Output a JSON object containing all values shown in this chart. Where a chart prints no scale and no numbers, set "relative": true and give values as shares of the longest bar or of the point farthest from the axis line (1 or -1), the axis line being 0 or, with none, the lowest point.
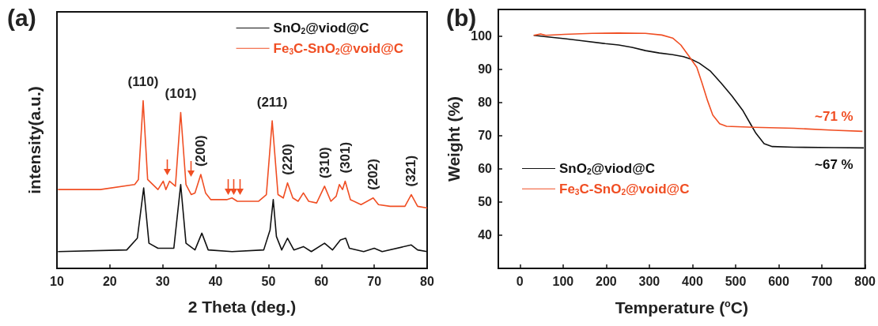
{
  "chart_data": [
    {
      "type": "line",
      "title": "(a)",
      "xlabel": "2 Theta (deg.)",
      "ylabel": "intensity(a.u.)",
      "relative": true,
      "tick_labels": "x",
      "legend": "top right",
      "xlim": [
        10,
        80
      ],
      "xticks": [
        10,
        20,
        30,
        40,
        50,
        60,
        70,
        80
      ],
      "series": [
        {
          "name": "SnO$_{2}$@viod@C",
          "color": "#111111",
          "x": [
            10.2,
            23.2,
            25.2,
            26.4,
            27.4,
            29.1,
            32.1,
            33.4,
            34.4,
            36.1,
            37.4,
            38.6,
            43.1,
            49.1,
            50.3,
            50.9,
            51.5,
            52.5,
            53.6,
            54.8,
            56.6,
            58.1,
            60.6,
            62.1,
            63.6,
            64.6,
            65.3,
            68.0,
            70.0,
            71.5,
            77.0,
            78.2,
            80.0
          ],
          "values": [
            0.1,
            0.11,
            0.18,
            0.48,
            0.15,
            0.12,
            0.12,
            0.5,
            0.15,
            0.11,
            0.21,
            0.11,
            0.1,
            0.11,
            0.23,
            0.41,
            0.19,
            0.11,
            0.18,
            0.11,
            0.13,
            0.1,
            0.15,
            0.11,
            0.17,
            0.18,
            0.12,
            0.1,
            0.12,
            0.1,
            0.14,
            0.11,
            0.1
          ]
        },
        {
          "name": "Fe$_{3}$C-SnO$_{2}$@void@C",
          "color": "#f04e23",
          "x": [
            10.2,
            18.2,
            24.7,
            25.4,
            26.3,
            27.15,
            29.1,
            30.1,
            30.6,
            31.3,
            32.4,
            33.4,
            34.4,
            35.4,
            36.1,
            37.2,
            38.1,
            39.1,
            42.1,
            43.1,
            44.1,
            48.1,
            49.6,
            50.7,
            51.8,
            52.8,
            53.6,
            54.6,
            55.6,
            56.6,
            57.6,
            59.1,
            60.6,
            61.8,
            62.8,
            63.4,
            64.0,
            64.5,
            65.5,
            67.5,
            69.8,
            70.8,
            73.0,
            75.8,
            77.0,
            78.2,
            80.0
          ],
          "values": [
            0.47,
            0.47,
            0.5,
            0.53,
            1.0,
            0.53,
            0.47,
            0.52,
            0.47,
            0.52,
            0.49,
            0.93,
            0.5,
            0.44,
            0.45,
            0.56,
            0.45,
            0.41,
            0.41,
            0.42,
            0.4,
            0.4,
            0.44,
            0.88,
            0.44,
            0.42,
            0.51,
            0.42,
            0.4,
            0.45,
            0.4,
            0.39,
            0.49,
            0.4,
            0.43,
            0.5,
            0.47,
            0.52,
            0.41,
            0.38,
            0.42,
            0.38,
            0.37,
            0.37,
            0.44,
            0.37,
            0.36
          ]
        }
      ],
      "annotations": [
        {
          "text": "(110)",
          "x": 26.3,
          "y": 1.0
        },
        {
          "text": "(101)",
          "x": 33.4,
          "y": 0.93
        },
        {
          "text": "(200)",
          "x": 37.2,
          "y": 0.56
        },
        {
          "text": "(211)",
          "x": 50.7,
          "y": 0.88
        },
        {
          "text": "(220)",
          "x": 53.6,
          "y": 0.51
        },
        {
          "text": "(310)",
          "x": 60.6,
          "y": 0.49
        },
        {
          "text": "(301)",
          "x": 64.5,
          "y": 0.52
        },
        {
          "text": "(202)",
          "x": 69.8,
          "y": 0.42
        },
        {
          "text": "(321)",
          "x": 77.0,
          "y": 0.44
        }
      ]
    },
    {
      "type": "line",
      "title": "(b)",
      "xlabel": "Temperature ($^{o}$C)",
      "ylabel": "Weight (%)",
      "legend": "left",
      "xlim": [
        -50,
        800
      ],
      "xticks": [
        0,
        100,
        200,
        300,
        400,
        500,
        600,
        700,
        800
      ],
      "ylim": [
        30,
        108
      ],
      "yticks": [
        40,
        50,
        60,
        70,
        80,
        90,
        100
      ],
      "series": [
        {
          "name": "SnO$_{2}$@viod@C",
          "color": "#111111",
          "x": [
            32,
            60,
            104,
            142,
            198,
            229,
            260,
            291,
            323,
            354,
            379,
            397,
            416,
            441,
            466,
            491,
            516,
            535,
            547,
            566,
            585,
            635,
            728,
            797
          ],
          "values": [
            100.2,
            99.8,
            99.2,
            98.6,
            97.7,
            97.3,
            96.6,
            95.6,
            94.9,
            94.4,
            93.8,
            93.0,
            91.8,
            89.5,
            85.9,
            82.0,
            77.7,
            73.4,
            70.7,
            67.6,
            66.7,
            66.5,
            66.4,
            66.3
          ]
        },
        {
          "name": "Fe$_{3}$C-SnO$_{2}$@void@C",
          "color": "#f04e23",
          "x": [
            32,
            48,
            60,
            104,
            167,
            229,
            291,
            329,
            354,
            373,
            391,
            410,
            422,
            435,
            447,
            463,
            479,
            541,
            635,
            728,
            794
          ],
          "values": [
            100.2,
            100.6,
            100.2,
            100.5,
            100.8,
            100.9,
            100.8,
            100.3,
            99.4,
            97.3,
            94.1,
            90.6,
            85.9,
            80.5,
            76.2,
            73.6,
            72.8,
            72.5,
            72.2,
            71.6,
            71.3
          ]
        }
      ],
      "annotations": [
        {
          "text": "~71 %",
          "x": 728,
          "y": 71.6
        },
        {
          "text": "~67 %",
          "x": 728,
          "y": 66.4
        }
      ]
    }
  ]
}
